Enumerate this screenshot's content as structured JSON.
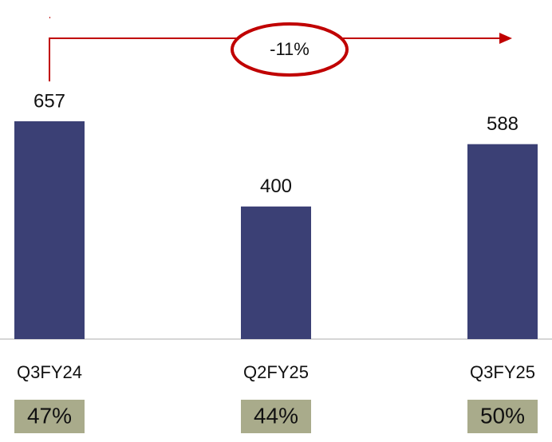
{
  "chart_data": {
    "type": "bar",
    "categories": [
      "Q3FY24",
      "Q2FY25",
      "Q3FY25"
    ],
    "values": [
      657,
      400,
      588
    ],
    "color": "#3b4075",
    "annotation": "-11%",
    "boxes": [
      {
        "value": 47,
        "label": "47%"
      },
      {
        "value": 44,
        "label": "44%"
      },
      {
        "value": 50,
        "label": "50%"
      }
    ],
    "box_color": "#a9ab8b"
  }
}
